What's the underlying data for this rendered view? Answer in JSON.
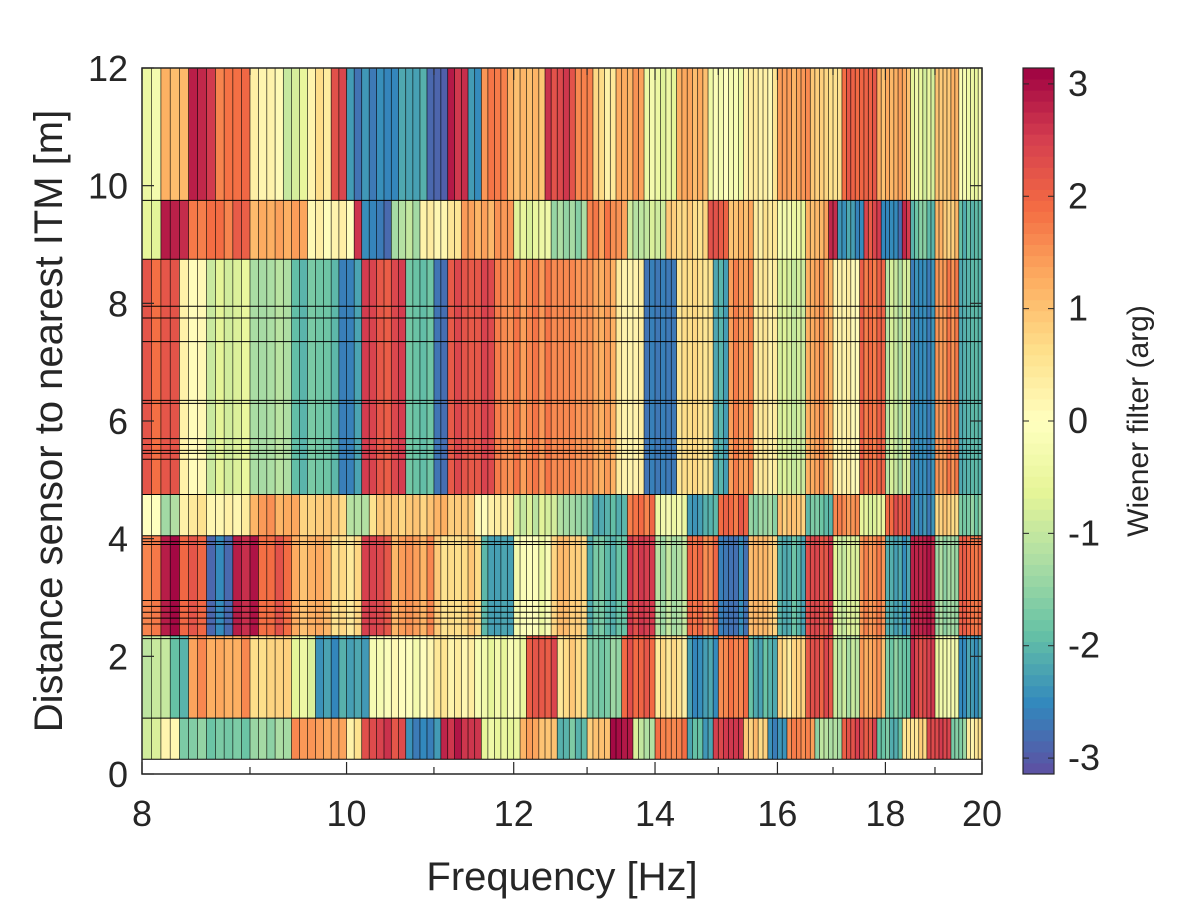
{
  "chart_data": {
    "type": "heatmap",
    "xlabel": "Frequency [Hz]",
    "ylabel": "Distance sensor to nearest ITM [m]",
    "x_scale": "log",
    "xlim": [
      8,
      20
    ],
    "ylim": [
      0,
      12
    ],
    "x_ticks": [
      8,
      10,
      12,
      14,
      16,
      18,
      20
    ],
    "x_tick_labels": [
      "8",
      "10",
      "12",
      "14",
      "16",
      "18",
      "20"
    ],
    "y_ticks": [
      0,
      2,
      4,
      6,
      8,
      10,
      12
    ],
    "y_tick_labels": [
      "0",
      "2",
      "4",
      "6",
      "8",
      "10",
      "12"
    ],
    "colorbar": {
      "label": "Wiener filter (arg)",
      "range": [
        -3.1416,
        3.1416
      ],
      "ticks": [
        -3,
        -2,
        -1,
        0,
        1,
        2,
        3
      ],
      "tick_labels": [
        "-3",
        "-2",
        "-1",
        "0",
        "1",
        "2",
        "3"
      ],
      "colormap": [
        "#5e4fa2",
        "#3288bd",
        "#66c2a5",
        "#abdda4",
        "#e6f598",
        "#ffffbf",
        "#fee08b",
        "#fdae61",
        "#f46d43",
        "#d53e4f",
        "#9e0142"
      ]
    },
    "frequency_range_hz": [
      8,
      20
    ],
    "frequency_bins": 144,
    "distance_bands": [
      {
        "y_min": 9.75,
        "y_max": 12.0,
        "phase_segments": [
          [
            8.0,
            -0.3
          ],
          [
            8.2,
            1.0
          ],
          [
            8.4,
            2.6
          ],
          [
            8.7,
            1.8
          ],
          [
            9.0,
            0.3
          ],
          [
            9.3,
            -0.8
          ],
          [
            9.55,
            0.4
          ],
          [
            9.8,
            2.2
          ],
          [
            10.0,
            -2.5
          ],
          [
            10.5,
            -2.3
          ],
          [
            10.9,
            -2.9
          ],
          [
            11.2,
            2.8
          ],
          [
            11.4,
            -2.5
          ],
          [
            11.6,
            1.6
          ],
          [
            11.9,
            1.2
          ],
          [
            12.4,
            2.4
          ],
          [
            12.8,
            1.8
          ],
          [
            13.1,
            0.5
          ],
          [
            13.4,
            1.4
          ],
          [
            13.8,
            -0.5
          ],
          [
            14.3,
            1.2
          ],
          [
            14.8,
            -0.2
          ],
          [
            15.4,
            0.3
          ],
          [
            16.0,
            1.4
          ],
          [
            16.6,
            0.8
          ],
          [
            17.2,
            2.0
          ],
          [
            17.8,
            1.2
          ],
          [
            18.5,
            -0.6
          ],
          [
            19.0,
            1.0
          ],
          [
            19.5,
            -0.3
          ]
        ]
      },
      {
        "y_min": 8.75,
        "y_max": 9.75,
        "phase_segments": [
          [
            8.0,
            -0.6
          ],
          [
            8.2,
            2.9
          ],
          [
            8.45,
            1.9
          ],
          [
            9.0,
            1.2
          ],
          [
            9.6,
            0.2
          ],
          [
            10.05,
            2.7
          ],
          [
            10.2,
            -2.6
          ],
          [
            10.5,
            -1.1
          ],
          [
            10.8,
            0.4
          ],
          [
            11.3,
            1.3
          ],
          [
            12.0,
            -0.6
          ],
          [
            12.5,
            -1.4
          ],
          [
            13.0,
            1.6
          ],
          [
            13.6,
            -0.9
          ],
          [
            14.2,
            0.8
          ],
          [
            14.8,
            2.1
          ],
          [
            15.2,
            1.2
          ],
          [
            15.6,
            0.5
          ],
          [
            16.0,
            -0.5
          ],
          [
            16.5,
            1.2
          ],
          [
            16.9,
            2.8
          ],
          [
            17.1,
            -2.4
          ],
          [
            17.6,
            2.3
          ],
          [
            17.9,
            -2.6
          ],
          [
            18.3,
            2.7
          ],
          [
            18.5,
            -1.8
          ],
          [
            19.0,
            1.0
          ],
          [
            19.5,
            -2.1
          ]
        ]
      },
      {
        "y_min": 4.75,
        "y_max": 8.75,
        "phase_segments": [
          [
            8.0,
            2.0
          ],
          [
            8.3,
            0.2
          ],
          [
            8.6,
            -0.7
          ],
          [
            9.0,
            -1.2
          ],
          [
            9.4,
            -1.8
          ],
          [
            9.9,
            -2.4
          ],
          [
            10.15,
            2.3
          ],
          [
            10.7,
            -2.0
          ],
          [
            11.0,
            -2.6
          ],
          [
            11.15,
            2.3
          ],
          [
            11.75,
            1.6
          ],
          [
            12.5,
            1.4
          ],
          [
            13.4,
            0.2
          ],
          [
            13.8,
            -2.5
          ],
          [
            14.3,
            0.7
          ],
          [
            14.9,
            -2.2
          ],
          [
            15.2,
            1.5
          ],
          [
            15.6,
            0.4
          ],
          [
            16.0,
            -0.8
          ],
          [
            16.5,
            1.4
          ],
          [
            17.0,
            0.2
          ],
          [
            17.5,
            1.9
          ],
          [
            18.0,
            -1.0
          ],
          [
            18.5,
            -2.6
          ],
          [
            19.0,
            1.6
          ],
          [
            19.5,
            -2.2
          ]
        ]
      },
      {
        "y_min": 4.05,
        "y_max": 4.75,
        "phase_segments": [
          [
            8.0,
            0.2
          ],
          [
            8.15,
            -1.2
          ],
          [
            8.3,
            0.4
          ],
          [
            9.0,
            1.4
          ],
          [
            9.5,
            0.9
          ],
          [
            10.0,
            -1.2
          ],
          [
            10.25,
            0.8
          ],
          [
            11.0,
            1.1
          ],
          [
            11.5,
            0.3
          ],
          [
            12.0,
            -0.9
          ],
          [
            12.6,
            -1.4
          ],
          [
            13.1,
            -2.0
          ],
          [
            13.6,
            1.8
          ],
          [
            14.0,
            -0.3
          ],
          [
            14.5,
            -2.2
          ],
          [
            15.0,
            2.0
          ],
          [
            15.5,
            -1.4
          ],
          [
            16.0,
            0.9
          ],
          [
            16.5,
            -1.8
          ],
          [
            17.0,
            1.6
          ],
          [
            17.5,
            -0.6
          ],
          [
            18.0,
            2.1
          ],
          [
            18.5,
            -2.5
          ],
          [
            19.0,
            0.8
          ],
          [
            19.5,
            -1.6
          ]
        ]
      },
      {
        "y_min": 2.35,
        "y_max": 4.05,
        "phase_segments": [
          [
            8.0,
            1.6
          ],
          [
            8.15,
            2.9
          ],
          [
            8.3,
            2.1
          ],
          [
            8.55,
            -2.7
          ],
          [
            8.8,
            2.8
          ],
          [
            9.1,
            2.0
          ],
          [
            9.4,
            1.1
          ],
          [
            9.8,
            0.6
          ],
          [
            10.2,
            2.3
          ],
          [
            10.5,
            1.4
          ],
          [
            11.0,
            0.8
          ],
          [
            11.6,
            -2.2
          ],
          [
            12.0,
            -0.2
          ],
          [
            12.5,
            0.9
          ],
          [
            13.0,
            -1.9
          ],
          [
            13.6,
            2.5
          ],
          [
            14.0,
            -1.2
          ],
          [
            14.5,
            1.8
          ],
          [
            15.0,
            -2.6
          ],
          [
            15.5,
            1.0
          ],
          [
            16.0,
            -2.0
          ],
          [
            16.5,
            2.4
          ],
          [
            17.0,
            -0.8
          ],
          [
            17.5,
            1.6
          ],
          [
            18.0,
            -2.3
          ],
          [
            18.5,
            2.8
          ],
          [
            19.0,
            -1.4
          ],
          [
            19.5,
            2.0
          ]
        ]
      },
      {
        "y_min": 0.95,
        "y_max": 2.35,
        "phase_segments": [
          [
            8.0,
            -0.9
          ],
          [
            8.25,
            -2.1
          ],
          [
            8.4,
            1.4
          ],
          [
            9.0,
            0.8
          ],
          [
            9.4,
            -0.6
          ],
          [
            9.7,
            -2.3
          ],
          [
            10.25,
            -0.1
          ],
          [
            10.9,
            0.3
          ],
          [
            11.5,
            -0.4
          ],
          [
            12.2,
            2.3
          ],
          [
            12.6,
            0.7
          ],
          [
            13.0,
            -1.6
          ],
          [
            13.5,
            2.1
          ],
          [
            14.0,
            0.5
          ],
          [
            14.5,
            -2.3
          ],
          [
            15.0,
            1.7
          ],
          [
            15.5,
            -2.0
          ],
          [
            16.0,
            0.6
          ],
          [
            16.5,
            2.2
          ],
          [
            17.0,
            -1.1
          ],
          [
            17.5,
            1.3
          ],
          [
            18.0,
            -1.7
          ],
          [
            18.5,
            2.5
          ],
          [
            19.0,
            -0.4
          ],
          [
            19.5,
            -2.4
          ]
        ]
      },
      {
        "y_min": 0.25,
        "y_max": 0.95,
        "phase_segments": [
          [
            8.0,
            -0.9
          ],
          [
            8.2,
            0.3
          ],
          [
            8.35,
            -1.7
          ],
          [
            9.0,
            -1.3
          ],
          [
            9.4,
            1.4
          ],
          [
            10.0,
            0.5
          ],
          [
            10.2,
            2.4
          ],
          [
            10.7,
            -2.5
          ],
          [
            11.1,
            2.8
          ],
          [
            11.6,
            -0.6
          ],
          [
            12.1,
            1.2
          ],
          [
            12.6,
            -1.9
          ],
          [
            13.0,
            0.9
          ],
          [
            13.3,
            2.9
          ],
          [
            13.7,
            -1.0
          ],
          [
            14.0,
            1.8
          ],
          [
            14.5,
            -2.1
          ],
          [
            14.9,
            2.6
          ],
          [
            15.4,
            0.9
          ],
          [
            15.8,
            -2.4
          ],
          [
            16.2,
            1.6
          ],
          [
            16.7,
            -1.3
          ],
          [
            17.2,
            2.3
          ],
          [
            17.8,
            -1.9
          ],
          [
            18.3,
            0.7
          ],
          [
            18.8,
            2.4
          ],
          [
            19.3,
            -1.5
          ],
          [
            19.7,
            0.4
          ]
        ]
      }
    ],
    "boundary_lines_m": [
      0.25,
      0.95,
      2.3,
      2.35,
      2.55,
      2.65,
      2.75,
      2.85,
      2.95,
      3.9,
      3.95,
      4.05,
      4.75,
      5.35,
      5.45,
      5.5,
      5.6,
      5.7,
      6.3,
      6.35,
      7.35,
      7.75,
      7.95,
      8.75,
      9.75
    ]
  }
}
